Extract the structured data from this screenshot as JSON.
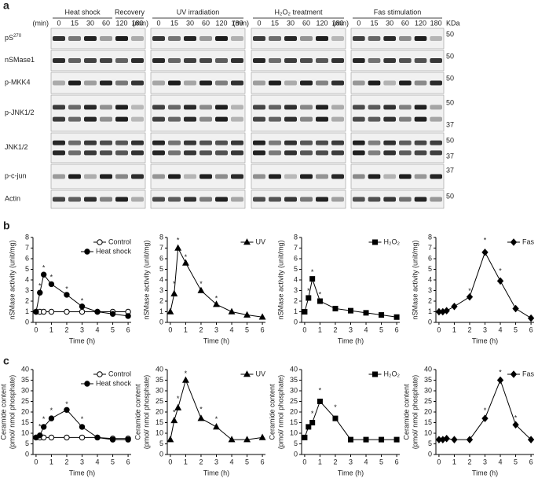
{
  "figure": {
    "panels": [
      "a",
      "b",
      "c"
    ]
  },
  "blots": {
    "time_unit": "(min)",
    "kda_header": "KDa",
    "times": [
      "0",
      "15",
      "30",
      "60",
      "120",
      "180"
    ],
    "groups": [
      {
        "headers": [
          "Heat shock",
          "Recovery"
        ]
      },
      {
        "headers": [
          "UV irradiation"
        ]
      },
      {
        "headers": [
          "H₂O₂ treatment"
        ]
      },
      {
        "headers": [
          "Fas stimulation"
        ]
      }
    ],
    "rows": [
      {
        "label": "pS",
        "sup": "270",
        "kda": [
          "50"
        ]
      },
      {
        "label": "nSMase1",
        "kda": [
          "50"
        ]
      },
      {
        "label": "p-MKK4",
        "kda": [
          "50"
        ]
      },
      {
        "label": "p-JNK1/2",
        "kda": [
          "50",
          "37"
        ]
      },
      {
        "label": "JNK1/2",
        "kda": [
          "50",
          "37"
        ]
      },
      {
        "label": "p-c-jun",
        "kda": [
          "37"
        ]
      },
      {
        "label": "Actin",
        "kda": [
          "50"
        ]
      }
    ]
  },
  "chart_data": [
    {
      "type": "line",
      "ylabel": [
        "nSMase activity (unit/mg)"
      ],
      "xlabel": "Time (h)",
      "x": [
        0,
        0.25,
        0.5,
        1,
        2,
        3,
        4,
        5,
        6
      ],
      "xlim": [
        -0.2,
        6.2
      ],
      "xticks": [
        0,
        1,
        2,
        3,
        4,
        5,
        6
      ],
      "ylim": [
        0,
        8
      ],
      "yticks": [
        0,
        1,
        2,
        3,
        4,
        5,
        6,
        7,
        8
      ],
      "legend": "upper right",
      "series": [
        {
          "name": "Control",
          "color": "#000",
          "marker": "circle",
          "fill": "#fff",
          "values": [
            1,
            1,
            1,
            1,
            1,
            1,
            1,
            1,
            1
          ]
        },
        {
          "name": "Heat shock",
          "color": "#000",
          "marker": "circle",
          "fill": "#000",
          "values": [
            1,
            2.8,
            4.5,
            3.6,
            2.6,
            1.5,
            1,
            0.8,
            0.6
          ]
        }
      ],
      "annotations": [
        {
          "text": "*",
          "x": 0.25,
          "y": 3.4
        },
        {
          "text": "*",
          "x": 0.5,
          "y": 5.1
        },
        {
          "text": "*",
          "x": 1,
          "y": 4.2
        },
        {
          "text": "*",
          "x": 2,
          "y": 3.1
        },
        {
          "text": "*",
          "x": 3,
          "y": 2
        }
      ]
    },
    {
      "type": "line",
      "ylabel": [
        "nSMase activity (unit/mg)"
      ],
      "xlabel": "Time (h)",
      "x": [
        0,
        0.25,
        0.5,
        1,
        2,
        3,
        4,
        5,
        6
      ],
      "xlim": [
        -0.2,
        6.2
      ],
      "xticks": [
        0,
        1,
        2,
        3,
        4,
        5,
        6
      ],
      "ylim": [
        0,
        8
      ],
      "yticks": [
        0,
        1,
        2,
        3,
        4,
        5,
        6,
        7,
        8
      ],
      "legend": "upper right",
      "series": [
        {
          "name": "UV",
          "color": "#000",
          "marker": "triangle",
          "fill": "#000",
          "values": [
            1,
            2.7,
            7,
            5.6,
            3,
            1.7,
            1,
            0.7,
            0.5
          ]
        }
      ],
      "annotations": [
        {
          "text": "*",
          "x": 0.25,
          "y": 3.6
        },
        {
          "text": "*",
          "x": 0.5,
          "y": 7.7
        },
        {
          "text": "*",
          "x": 1,
          "y": 6.1
        },
        {
          "text": "*",
          "x": 2,
          "y": 3.6
        },
        {
          "text": "*",
          "x": 3,
          "y": 2.2
        }
      ]
    },
    {
      "type": "line",
      "ylabel": [
        "nSMase activity (unit/mg)"
      ],
      "xlabel": "Time (h)",
      "x": [
        0,
        0.25,
        0.5,
        1,
        2,
        3,
        4,
        5,
        6
      ],
      "xlim": [
        -0.2,
        6.2
      ],
      "xticks": [
        0,
        1,
        2,
        3,
        4,
        5,
        6
      ],
      "ylim": [
        0,
        8
      ],
      "yticks": [
        0,
        1,
        2,
        3,
        4,
        5,
        6,
        7,
        8
      ],
      "legend": "upper right",
      "series": [
        {
          "name": "H₂O₂",
          "color": "#000",
          "marker": "square",
          "fill": "#000",
          "values": [
            1,
            2.3,
            4.1,
            2,
            1.3,
            1.1,
            0.9,
            0.7,
            0.5
          ]
        }
      ],
      "annotations": [
        {
          "text": "*",
          "x": 0.25,
          "y": 2.9
        },
        {
          "text": "*",
          "x": 0.5,
          "y": 4.7
        },
        {
          "text": "*",
          "x": 1,
          "y": 2.6
        }
      ]
    },
    {
      "type": "line",
      "ylabel": [
        "nSMase activity (unit/mg)"
      ],
      "xlabel": "Time (h)",
      "x": [
        0,
        0.25,
        0.5,
        1,
        2,
        3,
        4,
        5,
        6
      ],
      "xlim": [
        -0.2,
        6.2
      ],
      "xticks": [
        0,
        1,
        2,
        3,
        4,
        5,
        6
      ],
      "ylim": [
        0,
        8
      ],
      "yticks": [
        0,
        1,
        2,
        3,
        4,
        5,
        6,
        7,
        8
      ],
      "legend": "upper right",
      "series": [
        {
          "name": "Fas",
          "color": "#000",
          "marker": "diamond",
          "fill": "#000",
          "values": [
            1,
            1,
            1.1,
            1.5,
            2.4,
            6.6,
            3.9,
            1.3,
            0.4
          ]
        }
      ],
      "annotations": [
        {
          "text": "*",
          "x": 2,
          "y": 2.9
        },
        {
          "text": "*",
          "x": 3,
          "y": 7.7
        },
        {
          "text": "*",
          "x": 4,
          "y": 4.8
        }
      ]
    },
    {
      "type": "line",
      "ylabel": [
        "Ceramide content",
        "(pmol/ nmol phosphate)"
      ],
      "xlabel": "Time (h)",
      "x": [
        0,
        0.25,
        0.5,
        1,
        2,
        3,
        4,
        5,
        6
      ],
      "xlim": [
        -0.2,
        6.2
      ],
      "xticks": [
        0,
        1,
        2,
        3,
        4,
        5,
        6
      ],
      "ylim": [
        0,
        40
      ],
      "yticks": [
        0,
        5,
        10,
        15,
        20,
        25,
        30,
        35,
        40
      ],
      "legend": "upper right",
      "series": [
        {
          "name": "Control",
          "color": "#000",
          "marker": "circle",
          "fill": "#fff",
          "values": [
            8,
            8,
            8,
            8,
            8,
            8,
            8,
            7.5,
            7.5
          ]
        },
        {
          "name": "Heat shock",
          "color": "#000",
          "marker": "circle",
          "fill": "#000",
          "values": [
            8,
            9,
            13,
            17,
            21,
            13,
            8,
            7,
            7
          ]
        }
      ],
      "annotations": [
        {
          "text": "*",
          "x": 0.25,
          "y": 13
        },
        {
          "text": "*",
          "x": 0.5,
          "y": 16.5
        },
        {
          "text": "*",
          "x": 1,
          "y": 20.5
        },
        {
          "text": "*",
          "x": 2,
          "y": 23.5
        },
        {
          "text": "*",
          "x": 3,
          "y": 16.5
        }
      ]
    },
    {
      "type": "line",
      "ylabel": [
        "Ceramide content",
        "(pmol/ nmol phosphate)"
      ],
      "xlabel": "Time (h)",
      "x": [
        0,
        0.25,
        0.5,
        1,
        2,
        3,
        4,
        5,
        6
      ],
      "xlim": [
        -0.2,
        6.2
      ],
      "xticks": [
        0,
        1,
        2,
        3,
        4,
        5,
        6
      ],
      "ylim": [
        0,
        40
      ],
      "yticks": [
        0,
        5,
        10,
        15,
        20,
        25,
        30,
        35,
        40
      ],
      "legend": "upper right",
      "series": [
        {
          "name": "UV",
          "color": "#000",
          "marker": "triangle",
          "fill": "#000",
          "values": [
            7,
            16,
            22,
            35,
            17,
            13,
            7,
            7,
            8
          ]
        }
      ],
      "annotations": [
        {
          "text": "*",
          "x": 0.25,
          "y": 19.5
        },
        {
          "text": "*",
          "x": 0.5,
          "y": 26
        },
        {
          "text": "*",
          "x": 1,
          "y": 38
        },
        {
          "text": "*",
          "x": 2,
          "y": 21
        },
        {
          "text": "*",
          "x": 3,
          "y": 16.5
        }
      ]
    },
    {
      "type": "line",
      "ylabel": [
        "Ceramide content",
        "(pmol/ nmol phosphate)"
      ],
      "xlabel": "Time (h)",
      "x": [
        0,
        0.25,
        0.5,
        1,
        2,
        3,
        4,
        5,
        6
      ],
      "xlim": [
        -0.2,
        6.2
      ],
      "xticks": [
        0,
        1,
        2,
        3,
        4,
        5,
        6
      ],
      "ylim": [
        0,
        40
      ],
      "yticks": [
        0,
        5,
        10,
        15,
        20,
        25,
        30,
        35,
        40
      ],
      "legend": "upper right",
      "series": [
        {
          "name": "H₂O₂",
          "color": "#000",
          "marker": "square",
          "fill": "#000",
          "values": [
            8,
            13,
            15,
            25,
            17,
            7,
            7,
            7,
            7
          ]
        }
      ],
      "annotations": [
        {
          "text": "*",
          "x": 0.5,
          "y": 19
        },
        {
          "text": "*",
          "x": 1,
          "y": 30
        },
        {
          "text": "*",
          "x": 2,
          "y": 22
        }
      ]
    },
    {
      "type": "line",
      "ylabel": [
        "Ceramide content",
        "(pmol/ nmol phosphate)"
      ],
      "xlabel": "Time (h)",
      "x": [
        0,
        0.25,
        0.5,
        1,
        2,
        3,
        4,
        5,
        6
      ],
      "xlim": [
        -0.2,
        6.2
      ],
      "xticks": [
        0,
        1,
        2,
        3,
        4,
        5,
        6
      ],
      "ylim": [
        0,
        40
      ],
      "yticks": [
        0,
        5,
        10,
        15,
        20,
        25,
        30,
        35,
        40
      ],
      "legend": "upper right",
      "series": [
        {
          "name": "Fas",
          "color": "#000",
          "marker": "diamond",
          "fill": "#000",
          "values": [
            7,
            7,
            7.5,
            7,
            7,
            17,
            35,
            14,
            7
          ]
        }
      ],
      "annotations": [
        {
          "text": "*",
          "x": 3,
          "y": 20.5
        },
        {
          "text": "*",
          "x": 4,
          "y": 38.5
        },
        {
          "text": "*",
          "x": 5,
          "y": 17
        }
      ]
    }
  ]
}
